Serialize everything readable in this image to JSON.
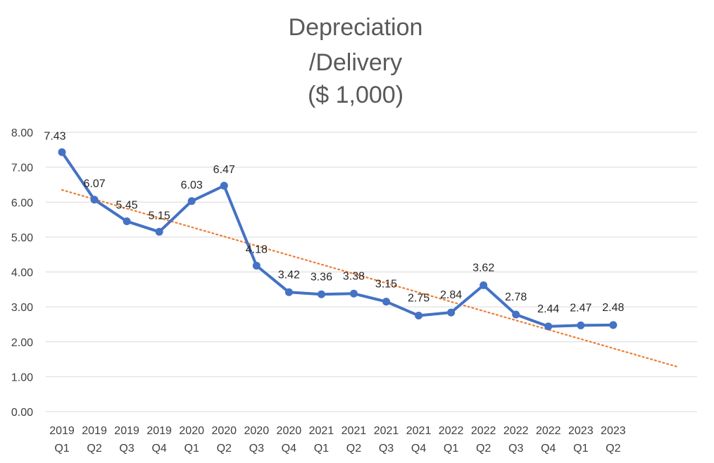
{
  "chart_data": {
    "type": "line",
    "title": [
      "Depreciation",
      "/Delivery",
      "($ 1,000)"
    ],
    "xlabel": "",
    "ylabel": "",
    "ylim": [
      0,
      8
    ],
    "y_ticks": [
      "0.00",
      "1.00",
      "2.00",
      "3.00",
      "4.00",
      "5.00",
      "6.00",
      "7.00",
      "8.00"
    ],
    "grid": true,
    "categories": [
      [
        "2019",
        "Q1"
      ],
      [
        "2019",
        "Q2"
      ],
      [
        "2019",
        "Q3"
      ],
      [
        "2019",
        "Q4"
      ],
      [
        "2020",
        "Q1"
      ],
      [
        "2020",
        "Q2"
      ],
      [
        "2020",
        "Q3"
      ],
      [
        "2020",
        "Q4"
      ],
      [
        "2021",
        "Q1"
      ],
      [
        "2021",
        "Q2"
      ],
      [
        "2021",
        "Q3"
      ],
      [
        "2021",
        "Q4"
      ],
      [
        "2022",
        "Q1"
      ],
      [
        "2022",
        "Q2"
      ],
      [
        "2022",
        "Q3"
      ],
      [
        "2022",
        "Q4"
      ],
      [
        "2023",
        "Q1"
      ],
      [
        "2023",
        "Q2"
      ]
    ],
    "series": [
      {
        "name": "Depreciation/Delivery",
        "values": [
          7.43,
          6.07,
          5.45,
          5.15,
          6.03,
          6.47,
          4.18,
          3.42,
          3.36,
          3.38,
          3.15,
          2.75,
          2.84,
          3.62,
          2.78,
          2.44,
          2.47,
          2.48
        ],
        "labels": [
          "7.43",
          "6.07",
          "5.45",
          "5.15",
          "6.03",
          "6.47",
          "4.18",
          "3.42",
          "3.36",
          "3.38",
          "3.15",
          "2.75",
          "2.84",
          "3.62",
          "2.78",
          "2.44",
          "2.47",
          "2.48"
        ],
        "color": "#4472c4"
      }
    ],
    "trendline": {
      "type": "linear",
      "style": "dotted",
      "color": "#ed7d31",
      "start_value": 6.35,
      "end_value": 1.28,
      "extends_categories": 2
    }
  }
}
